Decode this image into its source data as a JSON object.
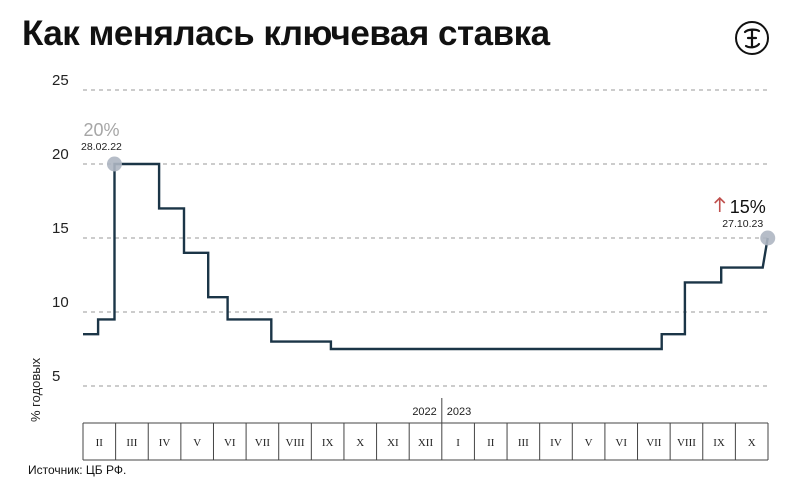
{
  "title": "Как менялась ключевая ставка",
  "source": "Источник: ЦБ РФ.",
  "logo_icon": "the-bell-logo",
  "chart_data": {
    "type": "line",
    "title": "Как менялась ключевая ставка",
    "ylabel": "% годовых",
    "xlabel": "",
    "ylim": [
      5,
      25
    ],
    "yticks": [
      5,
      10,
      15,
      20,
      25
    ],
    "grid": true,
    "years": [
      "2022",
      "2023"
    ],
    "months": [
      {
        "label": "II",
        "year": "2022"
      },
      {
        "label": "III",
        "year": "2022"
      },
      {
        "label": "IV",
        "year": "2022"
      },
      {
        "label": "V",
        "year": "2022"
      },
      {
        "label": "VI",
        "year": "2022"
      },
      {
        "label": "VII",
        "year": "2022"
      },
      {
        "label": "VIII",
        "year": "2022"
      },
      {
        "label": "IX",
        "year": "2022"
      },
      {
        "label": "X",
        "year": "2022"
      },
      {
        "label": "XI",
        "year": "2022"
      },
      {
        "label": "XII",
        "year": "2022"
      },
      {
        "label": "I",
        "year": "2023"
      },
      {
        "label": "II",
        "year": "2023"
      },
      {
        "label": "III",
        "year": "2023"
      },
      {
        "label": "IV",
        "year": "2023"
      },
      {
        "label": "V",
        "year": "2023"
      },
      {
        "label": "VI",
        "year": "2023"
      },
      {
        "label": "VII",
        "year": "2023"
      },
      {
        "label": "VIII",
        "year": "2023"
      },
      {
        "label": "IX",
        "year": "2023"
      },
      {
        "label": "X",
        "year": "2023"
      }
    ],
    "series": [
      {
        "color": "#1b3547",
        "points": [
          {
            "date": "2022-02-01",
            "rate": 8.5
          },
          {
            "date": "2022-02-14",
            "rate": 9.5
          },
          {
            "date": "2022-02-28",
            "rate": 20
          },
          {
            "date": "2022-04-11",
            "rate": 17
          },
          {
            "date": "2022-05-04",
            "rate": 14
          },
          {
            "date": "2022-05-27",
            "rate": 11
          },
          {
            "date": "2022-06-14",
            "rate": 9.5
          },
          {
            "date": "2022-07-25",
            "rate": 8
          },
          {
            "date": "2022-09-19",
            "rate": 7.5
          },
          {
            "date": "2023-07-24",
            "rate": 8.5
          },
          {
            "date": "2023-08-15",
            "rate": 12
          },
          {
            "date": "2023-09-18",
            "rate": 13
          },
          {
            "date": "2023-10-27",
            "rate": 15
          }
        ],
        "end_date": "2023-10-31"
      }
    ],
    "annotations": [
      {
        "value_label": "20%",
        "date_label": "28.02.22",
        "date": "2022-02-28",
        "rate": 20,
        "color": "#a6a6a6"
      },
      {
        "value_label": "15%",
        "date_label": "27.10.23",
        "date": "2023-10-27",
        "rate": 15,
        "color": "#111111",
        "arrow": "up",
        "arrow_color": "#c0504d"
      }
    ]
  }
}
